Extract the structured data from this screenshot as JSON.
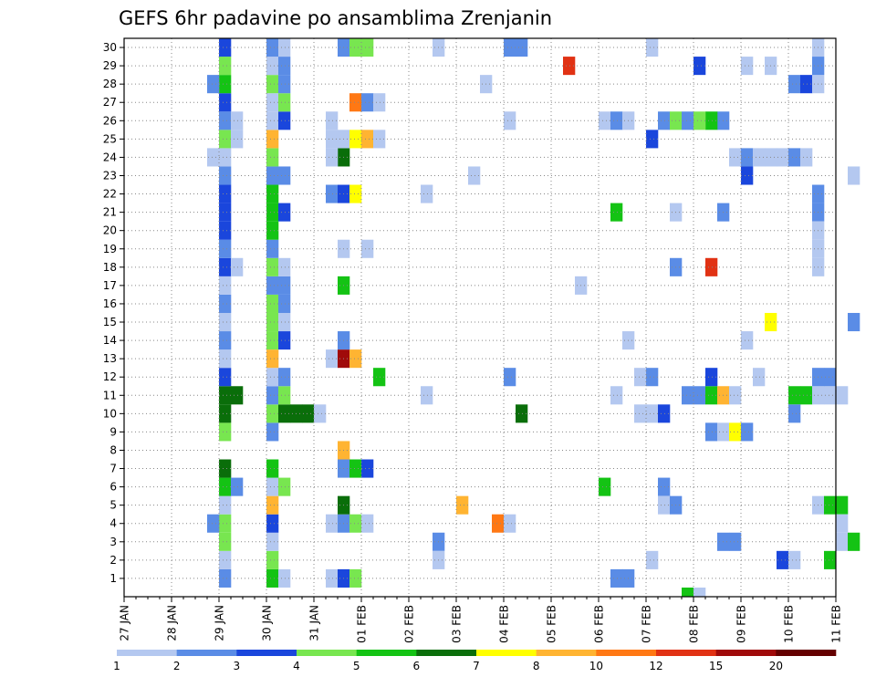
{
  "chart_data": {
    "type": "heatmap",
    "title": "GEFS 6hr padavine po ansamblima Zrenjanin",
    "xlabel": "",
    "ylabel": "",
    "x_ticks": [
      "27 JAN",
      "28 JAN",
      "29 JAN",
      "30 JAN",
      "31 JAN",
      "01 FEB",
      "02 FEB",
      "03 FEB",
      "04 FEB",
      "05 FEB",
      "06 FEB",
      "07 FEB",
      "08 FEB",
      "09 FEB",
      "10 FEB",
      "11 FEB"
    ],
    "y_ticks": [
      "1",
      "2",
      "3",
      "4",
      "5",
      "6",
      "7",
      "8",
      "9",
      "10",
      "11",
      "12",
      "13",
      "14",
      "15",
      "16",
      "17",
      "18",
      "19",
      "20",
      "21",
      "22",
      "23",
      "24",
      "25",
      "26",
      "27",
      "28",
      "29",
      "30"
    ],
    "steps_per_day": 4,
    "grid": true,
    "legend": {
      "placement": "bottom",
      "labels": [
        "1",
        "2",
        "3",
        "4",
        "5",
        "6",
        "7",
        "8",
        "10",
        "12",
        "15",
        "20"
      ],
      "colors": [
        "#b4c8f0",
        "#5a8ce6",
        "#1a46dc",
        "#78e650",
        "#14c314",
        "#0a6e0a",
        "#ffff00",
        "#ffb432",
        "#ff7814",
        "#e13214",
        "#a00a0a",
        "#640000"
      ]
    },
    "cells": [
      [
        8,
        1,
        2
      ],
      [
        8,
        2,
        1
      ],
      [
        8,
        3,
        4
      ],
      [
        8,
        4,
        4
      ],
      [
        8,
        5,
        1
      ],
      [
        8,
        6,
        5
      ],
      [
        8,
        7,
        6
      ],
      [
        8,
        9,
        4
      ],
      [
        8,
        10,
        6
      ],
      [
        8,
        11,
        6
      ],
      [
        8,
        12,
        3
      ],
      [
        8,
        13,
        1
      ],
      [
        8,
        14,
        2
      ],
      [
        8,
        15,
        1
      ],
      [
        8,
        16,
        2
      ],
      [
        8,
        17,
        1
      ],
      [
        8,
        18,
        3
      ],
      [
        8,
        19,
        2
      ],
      [
        8,
        20,
        3
      ],
      [
        8,
        21,
        3
      ],
      [
        8,
        22,
        3
      ],
      [
        8,
        23,
        2
      ],
      [
        8,
        24,
        1
      ],
      [
        8,
        25,
        4
      ],
      [
        8,
        26,
        2
      ],
      [
        8,
        27,
        3
      ],
      [
        8,
        28,
        5
      ],
      [
        8,
        29,
        4
      ],
      [
        8,
        30,
        3
      ],
      [
        9,
        6,
        2
      ],
      [
        9,
        11,
        6
      ],
      [
        9,
        18,
        1
      ],
      [
        9,
        25,
        1
      ],
      [
        9,
        26,
        1
      ],
      [
        7,
        4,
        2
      ],
      [
        7,
        28,
        2
      ],
      [
        7,
        24,
        1
      ],
      [
        12,
        1,
        5
      ],
      [
        12,
        2,
        4
      ],
      [
        12,
        3,
        1
      ],
      [
        12,
        4,
        3
      ],
      [
        12,
        5,
        8
      ],
      [
        12,
        6,
        1
      ],
      [
        12,
        7,
        5
      ],
      [
        12,
        9,
        2
      ],
      [
        12,
        10,
        4
      ],
      [
        12,
        11,
        2
      ],
      [
        12,
        12,
        1
      ],
      [
        12,
        13,
        8
      ],
      [
        12,
        14,
        4
      ],
      [
        12,
        15,
        4
      ],
      [
        12,
        16,
        4
      ],
      [
        12,
        17,
        2
      ],
      [
        12,
        18,
        4
      ],
      [
        12,
        19,
        2
      ],
      [
        12,
        20,
        5
      ],
      [
        12,
        21,
        5
      ],
      [
        12,
        22,
        5
      ],
      [
        12,
        23,
        2
      ],
      [
        12,
        24,
        4
      ],
      [
        12,
        25,
        8
      ],
      [
        12,
        26,
        1
      ],
      [
        12,
        27,
        1
      ],
      [
        12,
        28,
        4
      ],
      [
        12,
        29,
        1
      ],
      [
        12,
        30,
        2
      ],
      [
        13,
        1,
        1
      ],
      [
        13,
        6,
        4
      ],
      [
        13,
        10,
        6
      ],
      [
        13,
        11,
        4
      ],
      [
        13,
        12,
        2
      ],
      [
        13,
        14,
        3
      ],
      [
        13,
        15,
        1
      ],
      [
        13,
        16,
        2
      ],
      [
        13,
        17,
        2
      ],
      [
        13,
        18,
        1
      ],
      [
        13,
        21,
        3
      ],
      [
        13,
        23,
        2
      ],
      [
        13,
        26,
        3
      ],
      [
        13,
        27,
        4
      ],
      [
        13,
        28,
        2
      ],
      [
        13,
        29,
        2
      ],
      [
        13,
        30,
        1
      ],
      [
        14,
        10,
        6
      ],
      [
        15,
        10,
        6
      ],
      [
        16,
        10,
        1
      ],
      [
        17,
        13,
        1
      ],
      [
        18,
        13,
        11
      ],
      [
        19,
        13,
        8
      ],
      [
        17,
        1,
        1
      ],
      [
        18,
        1,
        3
      ],
      [
        19,
        1,
        4
      ],
      [
        17,
        4,
        1
      ],
      [
        18,
        4,
        2
      ],
      [
        19,
        4,
        4
      ],
      [
        20,
        4,
        1
      ],
      [
        18,
        5,
        6
      ],
      [
        18,
        7,
        2
      ],
      [
        19,
        7,
        5
      ],
      [
        20,
        7,
        3
      ],
      [
        18,
        8,
        8
      ],
      [
        18,
        14,
        2
      ],
      [
        18,
        17,
        5
      ],
      [
        18,
        19,
        1
      ],
      [
        20,
        19,
        1
      ],
      [
        17,
        22,
        2
      ],
      [
        18,
        22,
        3
      ],
      [
        19,
        22,
        7
      ],
      [
        18,
        24,
        6
      ],
      [
        17,
        24,
        1
      ],
      [
        17,
        25,
        1
      ],
      [
        18,
        25,
        1
      ],
      [
        19,
        25,
        7
      ],
      [
        20,
        25,
        8
      ],
      [
        21,
        25,
        1
      ],
      [
        17,
        26,
        1
      ],
      [
        19,
        27,
        9
      ],
      [
        20,
        27,
        2
      ],
      [
        21,
        27,
        1
      ],
      [
        18,
        30,
        2
      ],
      [
        19,
        30,
        4
      ],
      [
        20,
        30,
        4
      ],
      [
        21,
        12,
        5
      ],
      [
        26,
        3,
        2
      ],
      [
        26,
        2,
        1
      ],
      [
        25,
        11,
        1
      ],
      [
        25,
        22,
        1
      ],
      [
        26,
        30,
        1
      ],
      [
        28,
        5,
        8
      ],
      [
        29,
        23,
        1
      ],
      [
        30,
        28,
        1
      ],
      [
        31,
        4,
        9
      ],
      [
        32,
        4,
        1
      ],
      [
        32,
        12,
        2
      ],
      [
        32,
        26,
        1
      ],
      [
        32,
        30,
        2
      ],
      [
        33,
        30,
        2
      ],
      [
        33,
        10,
        6
      ],
      [
        37,
        29,
        10
      ],
      [
        38,
        17,
        1
      ],
      [
        40,
        6,
        5
      ],
      [
        40,
        26,
        1
      ],
      [
        41,
        1,
        2
      ],
      [
        41,
        11,
        1
      ],
      [
        41,
        21,
        5
      ],
      [
        42,
        1,
        2
      ],
      [
        41,
        26,
        2
      ],
      [
        42,
        26,
        1
      ],
      [
        42,
        14,
        1
      ],
      [
        43,
        12,
        1
      ],
      [
        43,
        10,
        1
      ],
      [
        44,
        12,
        2
      ],
      [
        44,
        10,
        1
      ],
      [
        44,
        2,
        1
      ],
      [
        44,
        25,
        3
      ],
      [
        44,
        30,
        1
      ],
      [
        45,
        6,
        2
      ],
      [
        45,
        5,
        1
      ],
      [
        45,
        10,
        3
      ],
      [
        46,
        5,
        2
      ],
      [
        45,
        26,
        2
      ],
      [
        46,
        26,
        4
      ],
      [
        47,
        26,
        2
      ],
      [
        46,
        21,
        1
      ],
      [
        46,
        18,
        2
      ],
      [
        47,
        11,
        2
      ],
      [
        48,
        11,
        2
      ],
      [
        49,
        11,
        5
      ],
      [
        49,
        12,
        3
      ],
      [
        50,
        11,
        8
      ],
      [
        51,
        11,
        1
      ],
      [
        47,
        0,
        5
      ],
      [
        48,
        0,
        1
      ],
      [
        49,
        18,
        10
      ],
      [
        49,
        9,
        2
      ],
      [
        50,
        9,
        1
      ],
      [
        51,
        9,
        7
      ],
      [
        52,
        9,
        2
      ],
      [
        50,
        21,
        2
      ],
      [
        50,
        26,
        2
      ],
      [
        49,
        26,
        5
      ],
      [
        48,
        26,
        4
      ],
      [
        48,
        29,
        3
      ],
      [
        50,
        3,
        2
      ],
      [
        51,
        3,
        2
      ],
      [
        51,
        24,
        1
      ],
      [
        52,
        24,
        2
      ],
      [
        52,
        23,
        3
      ],
      [
        53,
        24,
        1
      ],
      [
        52,
        29,
        1
      ],
      [
        52,
        14,
        1
      ],
      [
        53,
        12,
        1
      ],
      [
        54,
        15,
        7
      ],
      [
        54,
        24,
        1
      ],
      [
        55,
        24,
        1
      ],
      [
        54,
        29,
        1
      ],
      [
        55,
        2,
        3
      ],
      [
        56,
        2,
        1
      ],
      [
        56,
        11,
        5
      ],
      [
        57,
        11,
        5
      ],
      [
        56,
        10,
        2
      ],
      [
        56,
        24,
        2
      ],
      [
        57,
        24,
        1
      ],
      [
        56,
        28,
        2
      ],
      [
        57,
        28,
        3
      ],
      [
        58,
        11,
        1
      ],
      [
        59,
        11,
        1
      ],
      [
        60,
        11,
        1
      ],
      [
        58,
        12,
        2
      ],
      [
        59,
        12,
        2
      ],
      [
        58,
        30,
        1
      ],
      [
        58,
        28,
        1
      ],
      [
        58,
        29,
        2
      ],
      [
        58,
        22,
        2
      ],
      [
        58,
        21,
        2
      ],
      [
        58,
        20,
        1
      ],
      [
        58,
        19,
        1
      ],
      [
        58,
        18,
        1
      ],
      [
        58,
        5,
        1
      ],
      [
        59,
        5,
        5
      ],
      [
        60,
        5,
        5
      ],
      [
        60,
        4,
        1
      ],
      [
        59,
        2,
        5
      ],
      [
        60,
        3,
        1
      ],
      [
        61,
        3,
        5
      ],
      [
        61,
        15,
        2
      ],
      [
        61,
        23,
        1
      ]
    ]
  }
}
